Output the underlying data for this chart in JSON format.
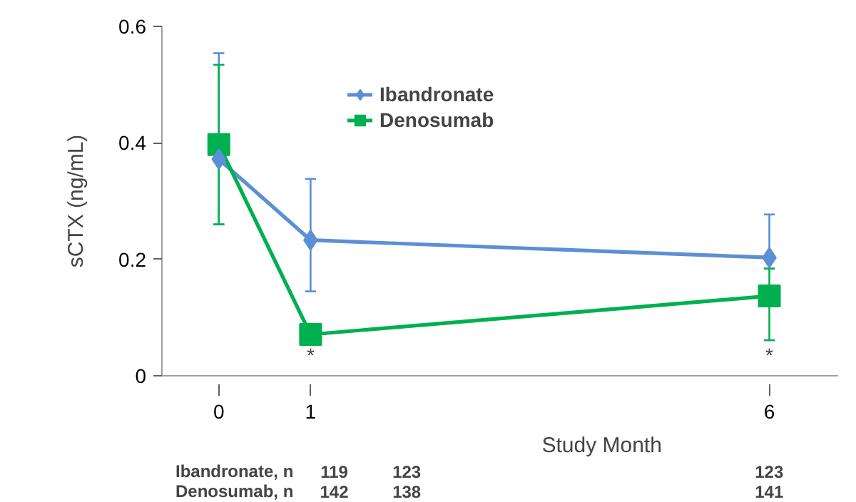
{
  "chart_data": {
    "type": "line",
    "ylabel": "sCTX (ng/mL)",
    "xlabel": "Study Month",
    "x": [
      0,
      1,
      6
    ],
    "series": [
      {
        "name": "Ibandronate",
        "color": "#5b8fd6",
        "marker": "diamond",
        "values": [
          0.372,
          0.233,
          0.203
        ],
        "errors": [
          [
            0.26,
            0.554
          ],
          [
            0.145,
            0.338
          ],
          [
            0.184,
            0.277
          ]
        ]
      },
      {
        "name": "Denosumab",
        "color": "#00b04f",
        "marker": "square",
        "values": [
          0.397,
          0.071,
          0.137
        ],
        "errors": [
          [
            0.26,
            0.534
          ],
          [
            0.058,
            0.087
          ],
          [
            0.061,
            0.184
          ]
        ]
      }
    ],
    "xlim": [
      -0.62,
      6.75
    ],
    "ylim": [
      0,
      0.6
    ],
    "xticks": [
      0,
      1,
      6
    ],
    "yticks": [
      0,
      0.2,
      0.4,
      0.6
    ],
    "grid": false,
    "legend": "top",
    "annotations": [
      "*",
      "*",
      "Ibandronate, n",
      "Denosumab, n",
      "119",
      "123",
      "123",
      "142",
      "138",
      "141"
    ]
  }
}
